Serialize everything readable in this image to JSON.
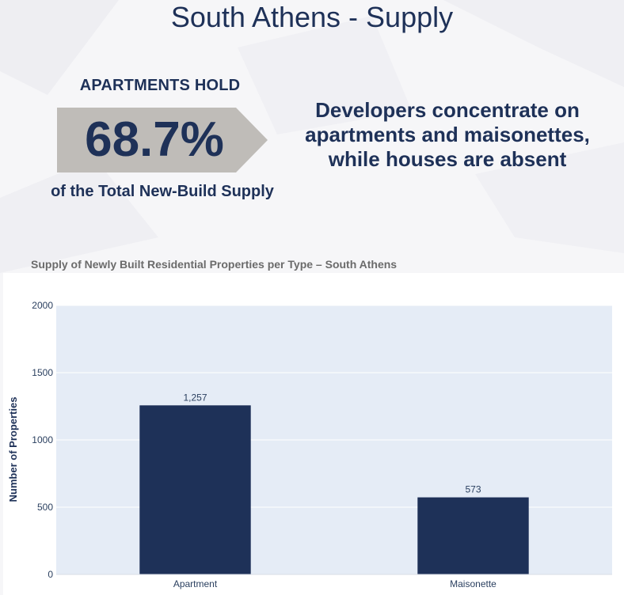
{
  "page": {
    "title": "South Athens - Supply"
  },
  "kpi": {
    "top_label": "APARTMENTS HOLD",
    "value": "68.7%",
    "bottom_label": "of the Total New-Build Supply"
  },
  "headline": "Developers concentrate on apartments and maisonettes, while houses are absent",
  "colors": {
    "navy": "#1e3158",
    "plot_background": "#e5ecf6",
    "arrow": "#bfbcb8"
  },
  "chart_data": {
    "type": "bar",
    "title": "Supply of Newly Built Residential Properties per Type –  South Athens",
    "xlabel": "",
    "ylabel": "Number of Properties",
    "categories": [
      "Apartment",
      "Maisonette"
    ],
    "values": [
      1257,
      573
    ],
    "data_labels": [
      "1,257",
      "573"
    ],
    "ylim": [
      0,
      2000
    ],
    "yticks": [
      0,
      500,
      1000,
      1500,
      2000
    ],
    "grid": true,
    "bar_color": "#1e3158"
  }
}
